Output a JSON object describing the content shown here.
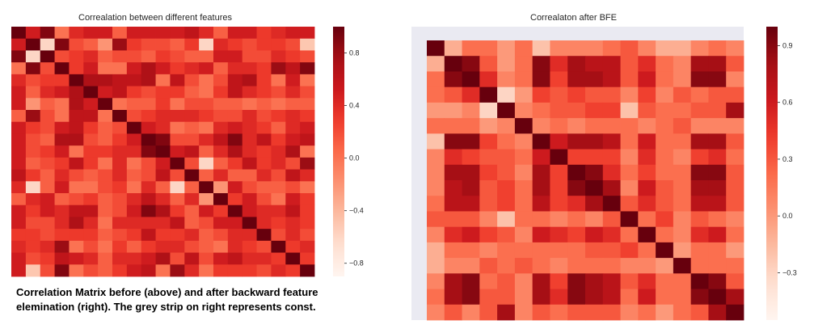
{
  "chart_data": [
    {
      "type": "heatmap",
      "title": "Correalation between different features",
      "n": 21,
      "colormap": "Reds",
      "vmin": -0.9,
      "vmax": 1.0,
      "colorbar_ticks": [
        {
          "value": 0.8,
          "label": "0.8"
        },
        {
          "value": 0.4,
          "label": "0.4"
        },
        {
          "value": 0.0,
          "label": "0.0"
        },
        {
          "value": -0.4,
          "label": "−0.4"
        },
        {
          "value": -0.8,
          "label": "−0.8"
        }
      ],
      "values": [
        [
          1.0,
          0.5,
          0.9,
          0.0,
          0.4,
          0.5,
          0.5,
          0.1,
          0.5,
          0.5,
          0.5,
          0.5,
          0.6,
          0.4,
          0.1,
          0.5,
          0.5,
          0.3,
          0.4,
          0.5,
          0.5
        ],
        [
          0.5,
          1.0,
          -0.6,
          0.9,
          0.2,
          0.1,
          -0.2,
          0.8,
          0.3,
          0.2,
          0.2,
          0.1,
          0.3,
          -0.6,
          0.4,
          0.3,
          0.2,
          0.3,
          0.3,
          0.2,
          -0.5
        ],
        [
          0.9,
          -0.6,
          1.0,
          0.2,
          0.3,
          0.4,
          0.1,
          0.2,
          0.2,
          0.1,
          0.3,
          0.2,
          0.1,
          0.1,
          0.5,
          0.5,
          0.2,
          0.2,
          0.4,
          0.3,
          0.2
        ],
        [
          0.0,
          0.9,
          0.2,
          1.0,
          0.3,
          0.5,
          0.0,
          0.0,
          0.5,
          0.7,
          0.5,
          0.3,
          0.4,
          0.5,
          0.1,
          0.4,
          0.4,
          0.3,
          0.8,
          0.6,
          0.9
        ],
        [
          0.4,
          0.2,
          0.3,
          0.3,
          1.0,
          0.7,
          0.7,
          0.6,
          0.6,
          0.7,
          0.0,
          0.6,
          0.2,
          0.0,
          0.2,
          0.6,
          0.7,
          0.3,
          0.0,
          0.5,
          0.0
        ],
        [
          0.5,
          0.1,
          0.4,
          0.5,
          0.7,
          1.0,
          0.5,
          0.6,
          0.3,
          0.2,
          0.3,
          0.3,
          0.1,
          0.0,
          0.3,
          0.6,
          0.4,
          0.3,
          0.2,
          0.4,
          0.2
        ],
        [
          0.5,
          -0.2,
          0.1,
          0.0,
          0.7,
          0.5,
          1.0,
          0.0,
          0.1,
          0.1,
          0.3,
          0.0,
          0.2,
          0.2,
          0.1,
          0.1,
          0.0,
          0.1,
          0.0,
          0.1,
          0.1
        ],
        [
          0.1,
          0.8,
          0.2,
          0.0,
          0.6,
          0.6,
          0.0,
          1.0,
          0.2,
          0.3,
          0.4,
          0.4,
          0.4,
          0.3,
          0.2,
          0.2,
          0.4,
          0.2,
          0.3,
          0.4,
          0.3
        ],
        [
          0.5,
          0.3,
          0.2,
          0.5,
          0.6,
          0.3,
          0.1,
          0.2,
          1.0,
          0.5,
          0.4,
          0.0,
          0.1,
          0.0,
          0.4,
          0.5,
          0.4,
          0.3,
          0.1,
          0.4,
          0.5
        ],
        [
          0.5,
          0.2,
          0.1,
          0.7,
          0.7,
          0.2,
          0.1,
          0.3,
          0.5,
          1.0,
          0.9,
          0.2,
          0.2,
          0.4,
          0.6,
          0.9,
          0.4,
          0.6,
          0.3,
          0.5,
          0.6
        ],
        [
          0.5,
          0.2,
          0.3,
          0.5,
          0.0,
          0.3,
          0.3,
          0.4,
          0.4,
          0.9,
          1.0,
          0.5,
          0.6,
          0.1,
          0.4,
          0.7,
          0.4,
          0.3,
          0.4,
          0.7,
          0.0
        ],
        [
          0.5,
          0.1,
          0.2,
          0.3,
          0.6,
          0.3,
          0.0,
          0.4,
          0.0,
          0.2,
          0.5,
          1.0,
          0.2,
          -0.6,
          0.1,
          0.3,
          0.6,
          0.3,
          0.4,
          0.2,
          0.8
        ],
        [
          0.6,
          0.3,
          0.1,
          0.4,
          0.2,
          0.1,
          0.2,
          0.4,
          0.1,
          0.2,
          0.6,
          0.2,
          1.0,
          0.1,
          0.4,
          0.1,
          0.1,
          0.4,
          0.2,
          0.6,
          0.4
        ],
        [
          0.4,
          -0.6,
          0.1,
          0.5,
          0.0,
          0.0,
          0.2,
          0.3,
          0.0,
          0.4,
          0.1,
          -0.6,
          0.1,
          1.0,
          -0.2,
          0.5,
          0.2,
          0.1,
          0.1,
          0.2,
          0.0
        ],
        [
          0.1,
          0.4,
          0.5,
          0.1,
          0.2,
          0.3,
          0.1,
          0.2,
          0.4,
          0.6,
          0.4,
          0.1,
          0.4,
          -0.2,
          1.0,
          0.3,
          0.5,
          0.2,
          0.0,
          0.5,
          0.3
        ],
        [
          0.5,
          0.3,
          0.5,
          0.4,
          0.6,
          0.6,
          0.1,
          0.2,
          0.5,
          0.9,
          0.7,
          0.3,
          0.1,
          0.5,
          0.3,
          1.0,
          0.5,
          0.4,
          0.4,
          0.6,
          0.3
        ],
        [
          0.5,
          0.2,
          0.2,
          0.4,
          0.7,
          0.4,
          0.0,
          0.4,
          0.4,
          0.4,
          0.4,
          0.6,
          0.1,
          0.2,
          0.5,
          0.5,
          1.0,
          0.4,
          0.3,
          0.4,
          0.3
        ],
        [
          0.3,
          0.3,
          0.2,
          0.3,
          0.3,
          0.3,
          0.1,
          0.2,
          0.3,
          0.6,
          0.3,
          0.3,
          0.4,
          0.1,
          0.2,
          0.4,
          0.4,
          1.0,
          0.2,
          0.4,
          0.2
        ],
        [
          0.4,
          0.3,
          0.4,
          0.8,
          0.0,
          0.2,
          0.0,
          0.3,
          0.1,
          0.3,
          0.4,
          0.4,
          0.2,
          0.1,
          0.0,
          0.4,
          0.3,
          0.2,
          1.0,
          0.3,
          0.4
        ],
        [
          0.5,
          0.2,
          0.3,
          0.6,
          0.5,
          0.4,
          0.1,
          0.4,
          0.4,
          0.5,
          0.7,
          0.2,
          0.6,
          0.2,
          0.5,
          0.6,
          0.4,
          0.4,
          0.3,
          1.0,
          0.3
        ],
        [
          0.5,
          -0.5,
          0.2,
          0.9,
          0.0,
          0.2,
          0.1,
          0.3,
          0.5,
          0.6,
          0.0,
          0.8,
          0.4,
          0.0,
          0.3,
          0.3,
          0.3,
          0.2,
          0.4,
          0.3,
          1.0
        ]
      ]
    },
    {
      "type": "heatmap",
      "title": "Correalaton after BFE",
      "n": 18,
      "colormap": "Reds",
      "vmin": -0.55,
      "vmax": 1.0,
      "constant_feature_color": "#eaeaf2",
      "colorbar_ticks": [
        {
          "value": 0.9,
          "label": "0.9"
        },
        {
          "value": 0.6,
          "label": "0.6"
        },
        {
          "value": 0.3,
          "label": "0.3"
        },
        {
          "value": 0.0,
          "label": "0.0"
        },
        {
          "value": -0.3,
          "label": "−0.3"
        }
      ],
      "values": [
        [
          1.0,
          -0.1,
          0.2,
          0.2,
          0.0,
          0.2,
          -0.2,
          0.1,
          0.1,
          0.1,
          0.2,
          0.3,
          0.1,
          -0.1,
          -0.1,
          0.1,
          0.2,
          0.1
        ],
        [
          -0.1,
          1.0,
          0.9,
          0.3,
          0.0,
          0.2,
          0.9,
          0.5,
          0.8,
          0.7,
          0.7,
          0.3,
          0.5,
          0.2,
          0.1,
          0.8,
          0.8,
          0.3
        ],
        [
          0.2,
          0.9,
          1.0,
          0.5,
          0.1,
          0.2,
          0.9,
          0.4,
          0.8,
          0.8,
          0.7,
          0.3,
          0.6,
          0.2,
          0.1,
          0.9,
          0.9,
          0.1
        ],
        [
          0.2,
          0.3,
          0.5,
          1.0,
          -0.3,
          0.0,
          0.4,
          0.3,
          0.4,
          0.3,
          0.3,
          0.1,
          0.4,
          0.1,
          0.3,
          0.2,
          0.3,
          0.3
        ],
        [
          0.0,
          0.0,
          0.1,
          -0.3,
          1.0,
          0.1,
          0.2,
          0.3,
          0.3,
          0.4,
          0.4,
          -0.2,
          0.3,
          0.2,
          0.2,
          0.3,
          0.3,
          0.8
        ],
        [
          0.2,
          0.2,
          0.2,
          0.0,
          0.1,
          1.0,
          0.1,
          0.2,
          0.1,
          0.2,
          0.2,
          0.2,
          0.1,
          0.2,
          0.3,
          0.1,
          0.1,
          0.1
        ],
        [
          -0.2,
          0.9,
          0.9,
          0.4,
          0.2,
          0.1,
          1.0,
          0.6,
          0.8,
          0.8,
          0.7,
          0.2,
          0.6,
          0.2,
          0.2,
          0.8,
          0.8,
          0.3
        ],
        [
          0.1,
          0.5,
          0.4,
          0.3,
          0.3,
          0.2,
          0.6,
          1.0,
          0.4,
          0.4,
          0.4,
          0.1,
          0.5,
          0.2,
          0.1,
          0.4,
          0.5,
          0.2
        ],
        [
          0.1,
          0.8,
          0.8,
          0.4,
          0.3,
          0.1,
          0.8,
          0.4,
          1.0,
          0.9,
          0.5,
          0.2,
          0.4,
          0.2,
          0.2,
          0.9,
          0.9,
          0.3
        ],
        [
          0.1,
          0.7,
          0.8,
          0.3,
          0.4,
          0.2,
          0.8,
          0.4,
          0.9,
          1.0,
          0.8,
          0.1,
          0.6,
          0.3,
          0.2,
          0.8,
          0.8,
          0.3
        ],
        [
          0.2,
          0.7,
          0.7,
          0.3,
          0.4,
          0.2,
          0.7,
          0.4,
          0.5,
          0.8,
          1.0,
          0.3,
          0.5,
          0.3,
          0.2,
          0.7,
          0.7,
          0.3
        ],
        [
          0.3,
          0.3,
          0.3,
          0.1,
          -0.2,
          0.2,
          0.2,
          0.1,
          0.2,
          0.1,
          0.3,
          1.0,
          0.2,
          0.4,
          0.1,
          0.3,
          0.2,
          0.1
        ],
        [
          0.1,
          0.5,
          0.6,
          0.4,
          0.3,
          0.1,
          0.6,
          0.5,
          0.4,
          0.6,
          0.5,
          0.2,
          1.0,
          0.2,
          0.1,
          0.5,
          0.6,
          0.2
        ],
        [
          -0.1,
          0.2,
          0.2,
          0.1,
          0.2,
          0.2,
          0.2,
          0.2,
          0.2,
          0.3,
          0.3,
          0.4,
          0.2,
          1.0,
          0.0,
          0.2,
          0.2,
          0.0
        ],
        [
          -0.1,
          0.1,
          0.1,
          0.3,
          0.2,
          0.3,
          0.2,
          0.1,
          0.2,
          0.2,
          0.2,
          0.1,
          0.1,
          0.0,
          1.0,
          0.2,
          0.2,
          0.2
        ],
        [
          0.1,
          0.8,
          0.9,
          0.2,
          0.3,
          0.1,
          0.8,
          0.4,
          0.9,
          0.8,
          0.7,
          0.3,
          0.5,
          0.2,
          0.2,
          1.0,
          0.9,
          0.3
        ],
        [
          0.2,
          0.8,
          0.9,
          0.3,
          0.3,
          0.1,
          0.8,
          0.5,
          0.9,
          0.8,
          0.7,
          0.2,
          0.6,
          0.2,
          0.2,
          0.9,
          1.0,
          0.8
        ],
        [
          0.1,
          0.3,
          0.1,
          0.3,
          0.8,
          0.1,
          0.3,
          0.2,
          0.3,
          0.3,
          0.3,
          0.1,
          0.2,
          0.0,
          0.2,
          0.3,
          0.8,
          1.0
        ]
      ]
    }
  ],
  "caption_lines": [
    "Correlation Matrix before (above) and after backward feature",
    "elemination (right). The grey strip on right represents const."
  ]
}
